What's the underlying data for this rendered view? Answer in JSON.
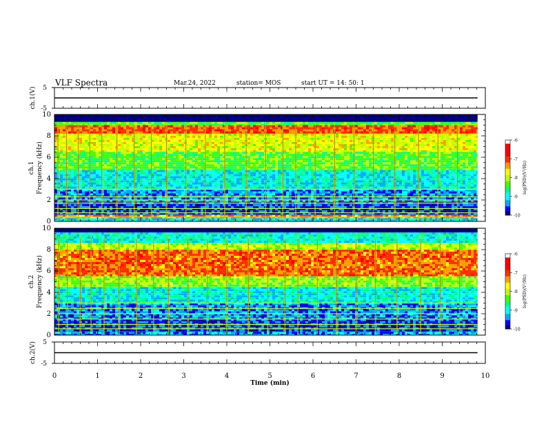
{
  "header": {
    "title": "VLF Spectra",
    "date": "Mar.24, 2022",
    "station": "station= MOS",
    "start": "start  UT =   14: 50: 1"
  },
  "chart_data": [
    {
      "type": "line",
      "panel": "ch1-waveform",
      "ylabel": "ch.1(V)",
      "ylim": [
        -5,
        5
      ],
      "yticks": [
        5,
        -5
      ],
      "xlim": [
        0,
        10
      ],
      "series": [
        {
          "x": [
            0,
            9.82
          ],
          "y": [
            0,
            0
          ]
        }
      ]
    },
    {
      "type": "heatmap",
      "panel": "ch1-spectrogram",
      "ylabel_lines": [
        "ch.1",
        "Frequency (kHz)"
      ],
      "ylim": [
        0,
        10
      ],
      "yticks": [
        0,
        2,
        4,
        6,
        8,
        10
      ],
      "xlim": [
        0,
        10
      ],
      "data_end_min": 9.82,
      "colorbar": {
        "label": "log(PSD)(V²/Hz)",
        "range": [
          -10,
          -6
        ],
        "ticks": [
          "-6",
          "-7",
          "-8",
          "-9",
          "-10"
        ],
        "colors": [
          "#000080",
          "#0000ff",
          "#00aaff",
          "#00ffff",
          "#00ff80",
          "#40ff00",
          "#c0ff00",
          "#ffff00",
          "#ffa000",
          "#ff3000",
          "#ff0000",
          "#ffffff"
        ]
      },
      "bands": [
        {
          "f": [
            9.3,
            10.0
          ],
          "level": -10.5
        },
        {
          "f": [
            9.0,
            9.3
          ],
          "level": -8.2
        },
        {
          "f": [
            8.2,
            9.0
          ],
          "level": -6.8
        },
        {
          "f": [
            6.5,
            8.2
          ],
          "level": -7.6
        },
        {
          "f": [
            4.8,
            6.5
          ],
          "level": -8.2
        },
        {
          "f": [
            3.0,
            4.8
          ],
          "level": -8.9
        },
        {
          "f": [
            1.8,
            3.0
          ],
          "level": -9.3
        },
        {
          "f": [
            0.6,
            1.8
          ],
          "level": -9.6
        },
        {
          "f": [
            0.3,
            0.6
          ],
          "level": -7.0
        },
        {
          "f": [
            0.0,
            0.3
          ],
          "level": -9.0
        }
      ],
      "lines_khz": [
        0.4,
        0.8,
        1.2,
        1.7,
        2.0,
        2.3,
        3.0
      ],
      "bursts_min": [
        0.08,
        0.28,
        0.55,
        0.82,
        1.1,
        1.45,
        1.85,
        2.25,
        2.6,
        3.05,
        3.5,
        3.95,
        4.45,
        4.9,
        5.3,
        5.6,
        6.05,
        6.5,
        6.95,
        7.4,
        7.9,
        8.45,
        8.9,
        9.35
      ]
    },
    {
      "type": "heatmap",
      "panel": "ch2-spectrogram",
      "ylabel_lines": [
        "ch.2",
        "Frequency (kHz)"
      ],
      "ylim": [
        0,
        10
      ],
      "yticks": [
        0,
        2,
        4,
        6,
        8,
        10
      ],
      "xlim": [
        0,
        10
      ],
      "data_end_min": 9.82,
      "colorbar": {
        "label": "log(PSD)(V²/Hz)",
        "range": [
          -10,
          -6
        ],
        "ticks": [
          "-6",
          "-7",
          "-8",
          "-9",
          "-10"
        ],
        "colors": [
          "#000080",
          "#0000ff",
          "#00aaff",
          "#00ffff",
          "#00ff80",
          "#40ff00",
          "#c0ff00",
          "#ffff00",
          "#ffa000",
          "#ff3000",
          "#ff0000",
          "#ffffff"
        ]
      },
      "bands": [
        {
          "f": [
            9.6,
            10.0
          ],
          "level": -10.5
        },
        {
          "f": [
            8.6,
            9.6
          ],
          "level": -8.8
        },
        {
          "f": [
            8.0,
            8.6
          ],
          "level": -7.8
        },
        {
          "f": [
            5.5,
            8.0
          ],
          "level": -6.9
        },
        {
          "f": [
            4.5,
            5.5
          ],
          "level": -8.0
        },
        {
          "f": [
            3.0,
            4.5
          ],
          "level": -8.9
        },
        {
          "f": [
            1.5,
            3.0
          ],
          "level": -9.3
        },
        {
          "f": [
            0.3,
            1.5
          ],
          "level": -9.6
        },
        {
          "f": [
            0.0,
            0.3
          ],
          "level": -9.2
        }
      ],
      "lines_khz": [
        0.6,
        1.0,
        1.5,
        2.0,
        2.5,
        3.0
      ],
      "bursts_min": [
        0.1,
        0.3,
        0.6,
        0.85,
        1.15,
        1.5,
        1.9,
        2.3,
        2.65,
        3.1,
        3.55,
        4.0,
        4.5,
        4.95,
        5.35,
        5.65,
        6.1,
        6.55,
        7.0,
        7.45,
        7.95,
        8.5,
        8.95,
        9.4
      ]
    },
    {
      "type": "line",
      "panel": "ch2-waveform",
      "ylabel": "ch.2(V)",
      "ylim": [
        -5,
        5
      ],
      "yticks": [
        5,
        -5
      ],
      "xlim": [
        0,
        10
      ],
      "xlabel": "Time  (min)",
      "xticks": [
        "0",
        "1",
        "2",
        "3",
        "4",
        "5",
        "6",
        "7",
        "8",
        "9",
        "10"
      ],
      "series": [
        {
          "x": [
            0,
            9.82
          ],
          "y": [
            0,
            0
          ]
        }
      ]
    }
  ]
}
